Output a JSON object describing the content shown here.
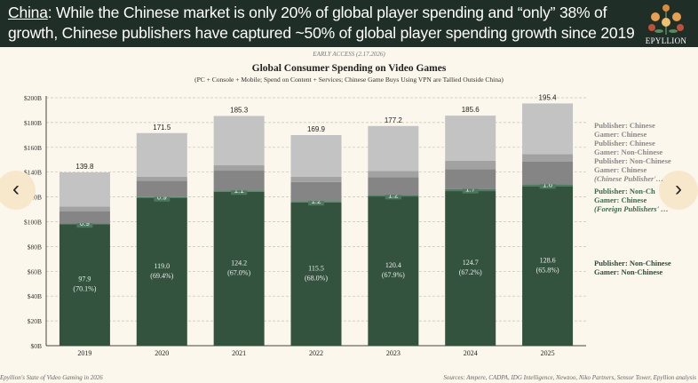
{
  "header": {
    "headline_lead": "China",
    "headline_rest": ": While the Chinese market is only 20% of global player spending and “only” 38% of growth, Chinese publishers have captured ~50% of global player spending growth since 2019",
    "logo_text": "EPYLLION"
  },
  "early_access": "EARLY ACCESS (2.17.2026)",
  "footer": {
    "left": "Epyllion's State of Video Gaming in 2026",
    "right": "Sources: Ampere, CADPA, IDG Intelligence, Newzoo, Niko Partners, Sensor Tower, Epyllion analysis"
  },
  "nav": {
    "prev": "‹",
    "next": "›"
  },
  "chart_data": {
    "type": "bar",
    "stacked": true,
    "title": "Global Consumer Spending on Video Games",
    "subtitle": "(PC + Console + Mobile; Spend on Content + Services; Chinese Game Buys Using VPN are Tallied Outside China)",
    "categories": [
      "2019",
      "2020",
      "2021",
      "2022",
      "2023",
      "2024",
      "2025"
    ],
    "ylim": [
      0,
      200
    ],
    "yticks": [
      "$0B",
      "$20B",
      "$40B",
      "$60B",
      "$80B",
      "$100B",
      "$120B",
      "$140B",
      "$160B",
      "$180B",
      "$200B"
    ],
    "grid": true,
    "legend_placement": "right",
    "totals": [
      "139.8",
      "171.5",
      "185.3",
      "169.9",
      "177.2",
      "185.6",
      "195.4"
    ],
    "series": [
      {
        "name": "Publisher: Non-Chinese / Gamer: Non-Chinese",
        "legend": [
          "Publisher: Non-Chinese",
          "Gamer: Non-Chinese"
        ],
        "color": "#34533f",
        "values": [
          97.9,
          119.0,
          124.2,
          115.5,
          120.4,
          124.7,
          128.6
        ],
        "labels": [
          "97.9",
          "119.0",
          "124.2",
          "115.5",
          "120.4",
          "124.7",
          "128.6"
        ],
        "pct_labels": [
          "(70.1%)",
          "(69.4%)",
          "(67.0%)",
          "(68.0%)",
          "(67.9%)",
          "(67.2%)",
          "(65.8%)"
        ]
      },
      {
        "name": "Publisher: Non-Chinese / Gamer: Chinese (Foreign Publishers' ...)",
        "legend": [
          "Publisher: Non-Ch",
          "Gamer: Chinese",
          "(Foreign Publishers' …"
        ],
        "color": "#4e7d62",
        "values": [
          0.9,
          0.9,
          1.1,
          1.2,
          1.2,
          1.7,
          1.6
        ],
        "labels": [
          "0.9",
          "0.9",
          "1.1",
          "1.2",
          "1.2",
          "1.7",
          "1.6"
        ]
      },
      {
        "name": "Publisher: Non-Chinese / Gamer: Chinese (Chinese Publisher's ...)",
        "legend": [
          "Publisher: Non-Chinese",
          "Gamer: Chinese",
          "(Chinese Publisher'…"
        ],
        "color": "#858585",
        "values": [
          9.7,
          13.2,
          15.9,
          15.4,
          14.4,
          16.0,
          18.2
        ]
      },
      {
        "name": "Publisher: Chinese / Gamer: Non-Chinese",
        "legend": [
          "Publisher: Chinese",
          "Gamer: Non-Chinese"
        ],
        "color": "#a2a2a2",
        "values": [
          3.8,
          3.3,
          4.3,
          4.3,
          5.0,
          6.9,
          6.2
        ]
      },
      {
        "name": "Publisher: Chinese / Gamer: Chinese",
        "legend": [
          "Publisher: Chinese",
          "Gamer: Chinese"
        ],
        "color": "#c3c3c3",
        "values": [
          27.5,
          35.1,
          39.8,
          33.5,
          36.2,
          36.3,
          40.8
        ]
      }
    ]
  }
}
